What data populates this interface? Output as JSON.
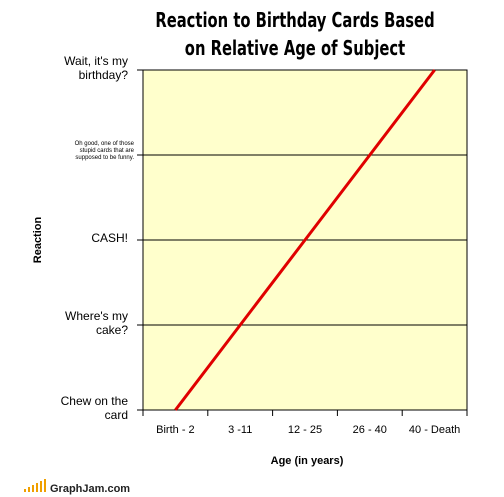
{
  "chart_data": {
    "type": "line",
    "title": "Reaction to Birthday Cards Based on Relative Age of Subject",
    "x_label": "Age (in years)",
    "y_label": "Reaction",
    "categories": [
      "Birth - 2",
      "3 -11",
      "12 - 25",
      "26 - 40",
      "40 - Death"
    ],
    "values": [
      0,
      1,
      2,
      3,
      4
    ],
    "color": "#e00000",
    "ylim": [
      0,
      4
    ],
    "yticks": [
      {
        "value": 0,
        "label": "Chew on the card"
      },
      {
        "value": 1,
        "label": "Where's my cake?"
      },
      {
        "value": 2,
        "label": "CASH!"
      },
      {
        "value": 3,
        "label": "Oh good, one of those stupid cards that are supposed to be funny."
      },
      {
        "value": 4,
        "label": "Wait, it's my birthday?"
      }
    ],
    "grid": true,
    "source": "GraphJam.com"
  }
}
